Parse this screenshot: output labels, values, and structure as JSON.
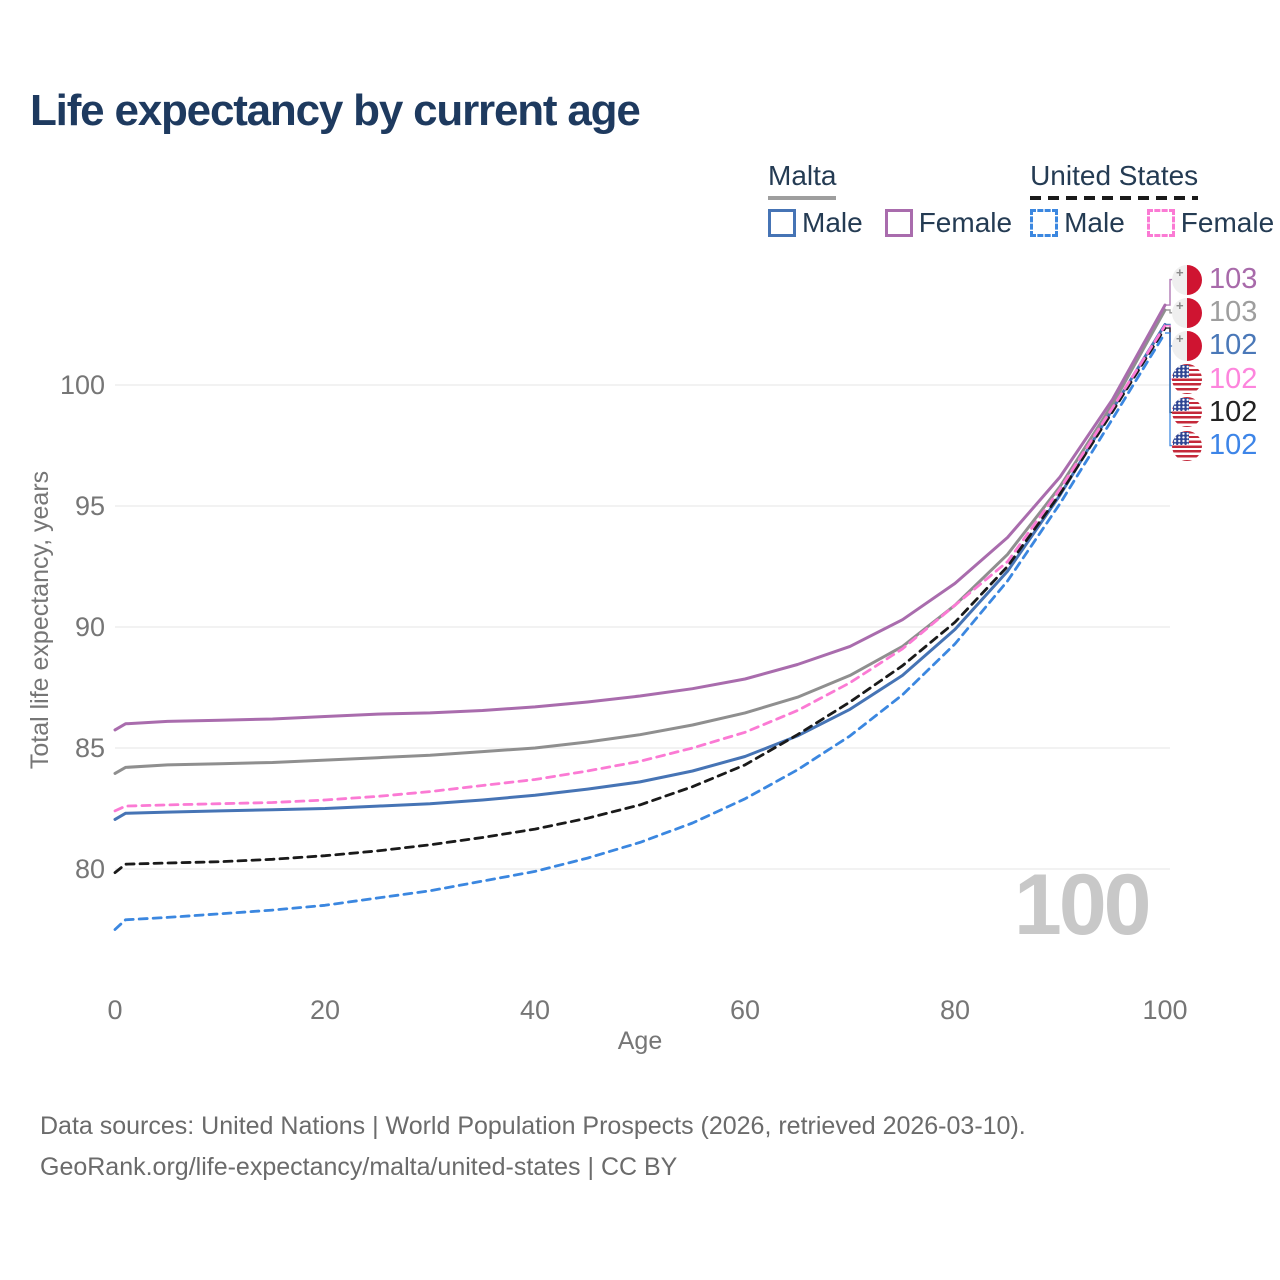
{
  "title": "Life expectancy by current age",
  "legend": {
    "malta": {
      "name": "Malta",
      "male": "Male",
      "female": "Female"
    },
    "us": {
      "name": "United States",
      "male": "Male",
      "female": "Female"
    }
  },
  "colors": {
    "malta_female": "#a96cad",
    "malta_total": "#8f8f8f",
    "malta_male": "#4674b5",
    "us_female": "#fb7ad4",
    "us_total": "#1a1a1a",
    "us_male": "#3b87e0",
    "title_text": "#1e3a5f",
    "legend_text": "#243b53",
    "axis_text": "#767676",
    "grid": "#e9e9e9",
    "watermark": "#c8c8c8",
    "footer_text": "#6b6b6b",
    "malta_flag_red": "#cf1431",
    "us_flag_red": "#c4293a",
    "us_flag_blue": "#2e4593"
  },
  "chart_data": {
    "type": "line",
    "title": "Life expectancy by current age",
    "xlabel": "Age",
    "ylabel": "Total life expectancy, years",
    "xticks": [
      0,
      20,
      40,
      60,
      80,
      100
    ],
    "yticks": [
      80,
      85,
      90,
      95,
      100
    ],
    "xlim": [
      0,
      100
    ],
    "ylim": [
      77,
      103.5
    ],
    "grid": "horizontal",
    "legend_position": "top-right",
    "watermark": "100",
    "x": [
      0,
      1,
      5,
      10,
      15,
      20,
      25,
      30,
      35,
      40,
      45,
      50,
      55,
      60,
      65,
      70,
      75,
      80,
      85,
      90,
      95,
      100
    ],
    "series": [
      {
        "name": "Malta Male",
        "country": "Malta",
        "sex": "Male",
        "color": "#4674b5",
        "dash": null,
        "width": 3,
        "values": [
          82.05,
          82.3,
          82.35,
          82.4,
          82.45,
          82.5,
          82.6,
          82.7,
          82.85,
          83.05,
          83.3,
          83.6,
          84.05,
          84.65,
          85.5,
          86.6,
          88.0,
          89.9,
          92.3,
          95.45,
          99.0,
          102.5
        ]
      },
      {
        "name": "Malta",
        "country": "Malta",
        "sex": "Both",
        "color": "#8f8f8f",
        "dash": null,
        "width": 3,
        "values": [
          83.95,
          84.2,
          84.3,
          84.35,
          84.4,
          84.5,
          84.6,
          84.7,
          84.85,
          85.0,
          85.25,
          85.55,
          85.95,
          86.45,
          87.1,
          88.0,
          89.2,
          90.9,
          93.0,
          95.8,
          99.2,
          103.1
        ]
      },
      {
        "name": "Malta Female",
        "country": "Malta",
        "sex": "Female",
        "color": "#a96cad",
        "dash": null,
        "width": 3,
        "values": [
          85.75,
          86.0,
          86.1,
          86.15,
          86.2,
          86.3,
          86.4,
          86.45,
          86.55,
          86.7,
          86.9,
          87.15,
          87.45,
          87.85,
          88.45,
          89.2,
          90.3,
          91.8,
          93.7,
          96.2,
          99.4,
          103.3
        ]
      },
      {
        "name": "United States Male",
        "country": "United States",
        "sex": "Male",
        "color": "#3b87e0",
        "dash": "8,6",
        "width": 2.8,
        "values": [
          77.5,
          77.9,
          78.0,
          78.15,
          78.3,
          78.5,
          78.8,
          79.1,
          79.5,
          79.9,
          80.45,
          81.1,
          81.9,
          82.9,
          84.1,
          85.5,
          87.2,
          89.3,
          91.9,
          95.1,
          98.6,
          102.15
        ]
      },
      {
        "name": "United States",
        "country": "United States",
        "sex": "Both",
        "color": "#1a1a1a",
        "dash": "8,6",
        "width": 2.8,
        "values": [
          79.85,
          80.2,
          80.25,
          80.3,
          80.4,
          80.55,
          80.75,
          81.0,
          81.3,
          81.65,
          82.1,
          82.65,
          83.4,
          84.3,
          85.55,
          86.9,
          88.4,
          90.2,
          92.5,
          95.5,
          98.9,
          102.35
        ]
      },
      {
        "name": "United States Female",
        "country": "United States",
        "sex": "Female",
        "color": "#fb7ad4",
        "dash": "8,6",
        "width": 2.8,
        "values": [
          82.4,
          82.6,
          82.65,
          82.7,
          82.75,
          82.85,
          83.0,
          83.2,
          83.45,
          83.7,
          84.05,
          84.45,
          85.0,
          85.65,
          86.55,
          87.7,
          89.1,
          90.9,
          92.7,
          95.7,
          99.05,
          102.45
        ]
      }
    ]
  },
  "end_labels": [
    {
      "value": "103",
      "flag": "mt",
      "series": "Malta Female",
      "color": "#a86aaa"
    },
    {
      "value": "103",
      "flag": "mt",
      "series": "Malta",
      "color": "#9e9e9e"
    },
    {
      "value": "102",
      "flag": "mt",
      "series": "Malta Male",
      "color": "#4a78b8"
    },
    {
      "value": "102",
      "flag": "us",
      "series": "United States Female",
      "color": "#fd85dd"
    },
    {
      "value": "102",
      "flag": "us",
      "series": "United States",
      "color": "#222222"
    },
    {
      "value": "102",
      "flag": "us",
      "series": "United States Male",
      "color": "#3d85e8"
    }
  ],
  "footer": {
    "line1": "Data sources: United Nations | World Population Prospects (2026, retrieved 2026-03-10).",
    "line2": "GeoRank.org/life-expectancy/malta/united-states | CC BY"
  }
}
